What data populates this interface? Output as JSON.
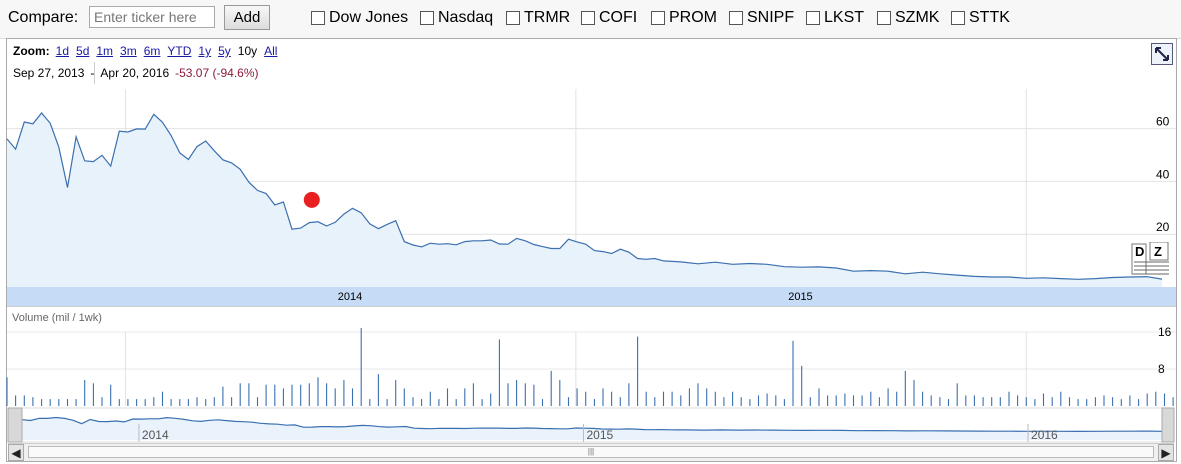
{
  "compare": {
    "label": "Compare:",
    "placeholder": "Enter ticker here",
    "add_label": "Add",
    "tickers": [
      "Dow Jones",
      "Nasdaq",
      "TRMR",
      "COFI",
      "PROM",
      "SNIPF",
      "LKST",
      "SZMK",
      "STTK"
    ]
  },
  "zoom": {
    "label": "Zoom:",
    "options": [
      "1d",
      "5d",
      "1m",
      "3m",
      "6m",
      "YTD",
      "1y",
      "5y",
      "10y",
      "All"
    ],
    "current": "10y"
  },
  "range": {
    "start": "Sep 27, 2013",
    "separator": "-",
    "end": "Apr 20, 2016",
    "change": "-53.07 (-94.6%)"
  },
  "volume_label": "Volume (mil / 1wk)",
  "colors": {
    "line": "#3a6fb0",
    "area": "#e8f2fb",
    "axis_band": "#c6dbf5",
    "marker": "#e82020"
  },
  "chart_data": {
    "type": "area",
    "price": {
      "x_range": [
        "2013-09-27",
        "2016-04-20"
      ],
      "ylim": [
        0,
        75
      ],
      "yticks": [
        "20",
        "40",
        "60"
      ],
      "xticks": [
        "2014",
        "2015"
      ],
      "grid": true,
      "points": [
        [
          "2013-09-27",
          56.1
        ],
        [
          "2013-10-04",
          52.2
        ],
        [
          "2013-10-11",
          62.5
        ],
        [
          "2013-10-18",
          61.8
        ],
        [
          "2013-10-25",
          65.9
        ],
        [
          "2013-11-01",
          62.0
        ],
        [
          "2013-11-08",
          53.0
        ],
        [
          "2013-11-15",
          37.7
        ],
        [
          "2013-11-22",
          56.9
        ],
        [
          "2013-11-29",
          47.8
        ],
        [
          "2013-12-06",
          47.5
        ],
        [
          "2013-12-13",
          49.9
        ],
        [
          "2013-12-20",
          45.8
        ],
        [
          "2013-12-27",
          59.0
        ],
        [
          "2014-01-03",
          58.7
        ],
        [
          "2014-01-10",
          59.9
        ],
        [
          "2014-01-17",
          59.8
        ],
        [
          "2014-01-24",
          65.4
        ],
        [
          "2014-01-31",
          62.4
        ],
        [
          "2014-02-07",
          57.4
        ],
        [
          "2014-02-14",
          50.8
        ],
        [
          "2014-02-21",
          48.3
        ],
        [
          "2014-02-28",
          53.2
        ],
        [
          "2014-03-07",
          55.3
        ],
        [
          "2014-03-14",
          51.6
        ],
        [
          "2014-03-21",
          48.2
        ],
        [
          "2014-03-28",
          47.0
        ],
        [
          "2014-04-04",
          44.6
        ],
        [
          "2014-04-11",
          39.7
        ],
        [
          "2014-04-18",
          36.6
        ],
        [
          "2014-04-25",
          35.4
        ],
        [
          "2014-05-02",
          31.1
        ],
        [
          "2014-05-09",
          32.2
        ],
        [
          "2014-05-16",
          21.9
        ],
        [
          "2014-05-23",
          22.3
        ],
        [
          "2014-05-30",
          24.4
        ],
        [
          "2014-06-06",
          24.7
        ],
        [
          "2014-06-13",
          23.1
        ],
        [
          "2014-06-20",
          24.5
        ],
        [
          "2014-06-27",
          27.6
        ],
        [
          "2014-07-04",
          29.8
        ],
        [
          "2014-07-11",
          28.1
        ],
        [
          "2014-07-18",
          23.9
        ],
        [
          "2014-07-25",
          22.1
        ],
        [
          "2014-08-01",
          23.7
        ],
        [
          "2014-08-08",
          25.1
        ],
        [
          "2014-08-15",
          17.2
        ],
        [
          "2014-08-22",
          15.9
        ],
        [
          "2014-08-29",
          15.2
        ],
        [
          "2014-09-05",
          16.6
        ],
        [
          "2014-09-12",
          16.2
        ],
        [
          "2014-09-19",
          16.4
        ],
        [
          "2014-09-26",
          16.0
        ],
        [
          "2014-10-03",
          17.2
        ],
        [
          "2014-10-10",
          17.5
        ],
        [
          "2014-10-17",
          17.5
        ],
        [
          "2014-10-24",
          17.8
        ],
        [
          "2014-10-31",
          16.3
        ],
        [
          "2014-11-07",
          16.2
        ],
        [
          "2014-11-14",
          18.4
        ],
        [
          "2014-11-21",
          17.5
        ],
        [
          "2014-11-28",
          16.1
        ],
        [
          "2014-12-05",
          15.3
        ],
        [
          "2014-12-12",
          14.6
        ],
        [
          "2014-12-19",
          14.6
        ],
        [
          "2014-12-26",
          18.1
        ],
        [
          "2015-01-02",
          17.1
        ],
        [
          "2015-01-09",
          16.2
        ],
        [
          "2015-01-16",
          13.8
        ],
        [
          "2015-01-23",
          13.4
        ],
        [
          "2015-01-30",
          12.7
        ],
        [
          "2015-02-06",
          14.3
        ],
        [
          "2015-02-13",
          13.2
        ],
        [
          "2015-02-20",
          10.8
        ],
        [
          "2015-02-27",
          10.5
        ],
        [
          "2015-03-06",
          10.8
        ],
        [
          "2015-03-13",
          9.9
        ],
        [
          "2015-03-20",
          9.7
        ],
        [
          "2015-03-27",
          9.5
        ],
        [
          "2015-04-10",
          8.8
        ],
        [
          "2015-04-24",
          9.4
        ],
        [
          "2015-05-08",
          8.6
        ],
        [
          "2015-05-22",
          8.9
        ],
        [
          "2015-06-05",
          8.6
        ],
        [
          "2015-06-19",
          7.7
        ],
        [
          "2015-07-03",
          7.5
        ],
        [
          "2015-07-17",
          7.6
        ],
        [
          "2015-07-31",
          7.2
        ],
        [
          "2015-08-14",
          6.0
        ],
        [
          "2015-08-28",
          6.2
        ],
        [
          "2015-09-11",
          6.0
        ],
        [
          "2015-09-25",
          5.0
        ],
        [
          "2015-10-09",
          5.6
        ],
        [
          "2015-10-23",
          5.0
        ],
        [
          "2015-11-06",
          4.5
        ],
        [
          "2015-11-20",
          4.0
        ],
        [
          "2015-12-04",
          3.8
        ],
        [
          "2015-12-18",
          3.8
        ],
        [
          "2016-01-01",
          3.3
        ],
        [
          "2016-01-15",
          3.5
        ],
        [
          "2016-01-29",
          3.2
        ],
        [
          "2016-02-12",
          2.9
        ],
        [
          "2016-02-26",
          3.2
        ],
        [
          "2016-03-11",
          3.6
        ],
        [
          "2016-03-25",
          3.8
        ],
        [
          "2016-04-08",
          3.9
        ],
        [
          "2016-04-20",
          3.0
        ]
      ]
    },
    "volume": {
      "ylim": [
        0,
        16
      ],
      "yticks": [
        "8",
        "16"
      ],
      "every_days": 7,
      "values": [
        6.2,
        2.3,
        2.3,
        1.9,
        1.5,
        1.5,
        1.5,
        1.5,
        1.5,
        5.6,
        4.9,
        1.9,
        4.6,
        1.5,
        1.5,
        1.5,
        1.5,
        1.9,
        3.1,
        1.5,
        1.5,
        1.5,
        1.9,
        1.5,
        1.9,
        4.2,
        1.9,
        4.9,
        4.9,
        1.9,
        4.6,
        4.6,
        3.8,
        4.6,
        4.6,
        4.9,
        6.2,
        4.9,
        3.8,
        5.6,
        3.8,
        17.1,
        1.5,
        6.9,
        1.5,
        5.6,
        3.8,
        1.9,
        1.5,
        3.1,
        1.5,
        3.8,
        1.5,
        3.8,
        4.9,
        1.5,
        2.7,
        14.4,
        4.9,
        5.6,
        4.9,
        4.6,
        1.5,
        7.6,
        5.6,
        1.9,
        3.8,
        3.1,
        1.5,
        3.8,
        3.1,
        1.9,
        4.9,
        15.0,
        3.1,
        1.9,
        3.1,
        3.1,
        2.3,
        3.8,
        4.9,
        3.8,
        3.1,
        1.9,
        3.1,
        1.9,
        1.5,
        2.3,
        2.7,
        2.3,
        1.5,
        14.1,
        8.7,
        1.9,
        3.8,
        2.3,
        2.3,
        2.7,
        2.3,
        2.3,
        3.1,
        1.9,
        3.8,
        3.1,
        7.6,
        5.6,
        3.1,
        2.3,
        1.9,
        1.5,
        4.9,
        2.3,
        2.3,
        1.9,
        1.9,
        1.9,
        3.1,
        2.3,
        1.9,
        1.5,
        2.7,
        1.9,
        3.1,
        1.9,
        1.5,
        1.5,
        1.9,
        2.3,
        1.9,
        1.5,
        2.3,
        1.5,
        2.7,
        3.1,
        2.7,
        1.9,
        3.1,
        2.3,
        1.9,
        1.9,
        3.8,
        3.1,
        4.6,
        2.7,
        1.9,
        1.5,
        1.5,
        1.5
      ]
    },
    "navigator": {
      "xticks": [
        "2014",
        "2015",
        "2016"
      ]
    },
    "annotation": {
      "date": "2014-06-01",
      "value": 33
    }
  }
}
